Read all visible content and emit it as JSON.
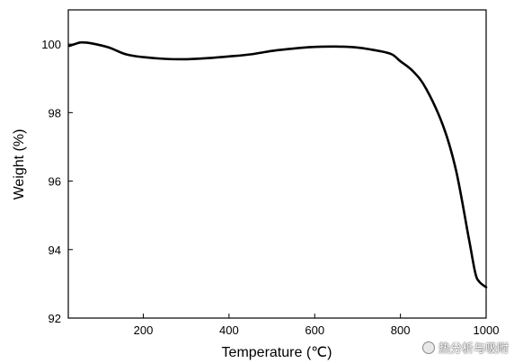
{
  "chart_data": {
    "type": "line",
    "title": "",
    "xlabel": "Temperature (℃)",
    "ylabel": "Weight (%)",
    "xlim": [
      25,
      1000
    ],
    "ylim": [
      92,
      101.0
    ],
    "x_ticks": [
      200,
      400,
      600,
      800,
      1000
    ],
    "x_tick_labels": [
      "200",
      "400",
      "600",
      "800",
      "1000"
    ],
    "y_ticks": [
      92,
      94,
      96,
      98,
      100
    ],
    "y_tick_labels": [
      "92",
      "94",
      "96",
      "98",
      "100"
    ],
    "grid": false,
    "series": [
      {
        "x": [
          28,
          40,
          55,
          80,
          120,
          160,
          200,
          250,
          300,
          350,
          400,
          450,
          500,
          550,
          600,
          650,
          700,
          750,
          780,
          800,
          830,
          860,
          900,
          930,
          960,
          975,
          985,
          1000
        ],
        "y": [
          99.95,
          100.0,
          100.05,
          100.02,
          99.9,
          99.7,
          99.62,
          99.57,
          99.56,
          99.59,
          99.64,
          99.7,
          99.8,
          99.87,
          99.92,
          99.93,
          99.9,
          99.8,
          99.7,
          99.5,
          99.2,
          98.7,
          97.6,
          96.3,
          94.3,
          93.3,
          93.05,
          92.9
        ]
      }
    ]
  },
  "watermark": {
    "text": "热分析与吸附"
  }
}
